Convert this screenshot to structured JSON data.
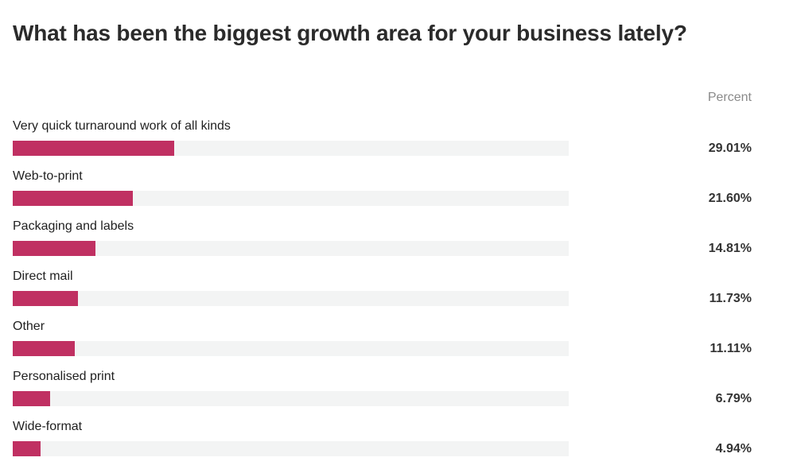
{
  "title": "What has been the biggest growth area for your business lately?",
  "column_header": "Percent",
  "accent_color": "#c03062",
  "track_color": "#f3f4f4",
  "chart_data": {
    "type": "bar",
    "orientation": "horizontal",
    "title": "What has been the biggest growth area for your business lately?",
    "value_header": "Percent",
    "categories": [
      "Very quick turnaround work of all kinds",
      "Web-to-print",
      "Packaging and labels",
      "Direct mail",
      "Other",
      "Personalised print",
      "Wide-format"
    ],
    "values": [
      29.01,
      21.6,
      14.81,
      11.73,
      11.11,
      6.79,
      4.94
    ],
    "value_labels": [
      "29.01%",
      "21.60%",
      "14.81%",
      "11.73%",
      "11.11%",
      "6.79%",
      "4.94%"
    ],
    "xlim": [
      0,
      100
    ],
    "grid": false
  }
}
